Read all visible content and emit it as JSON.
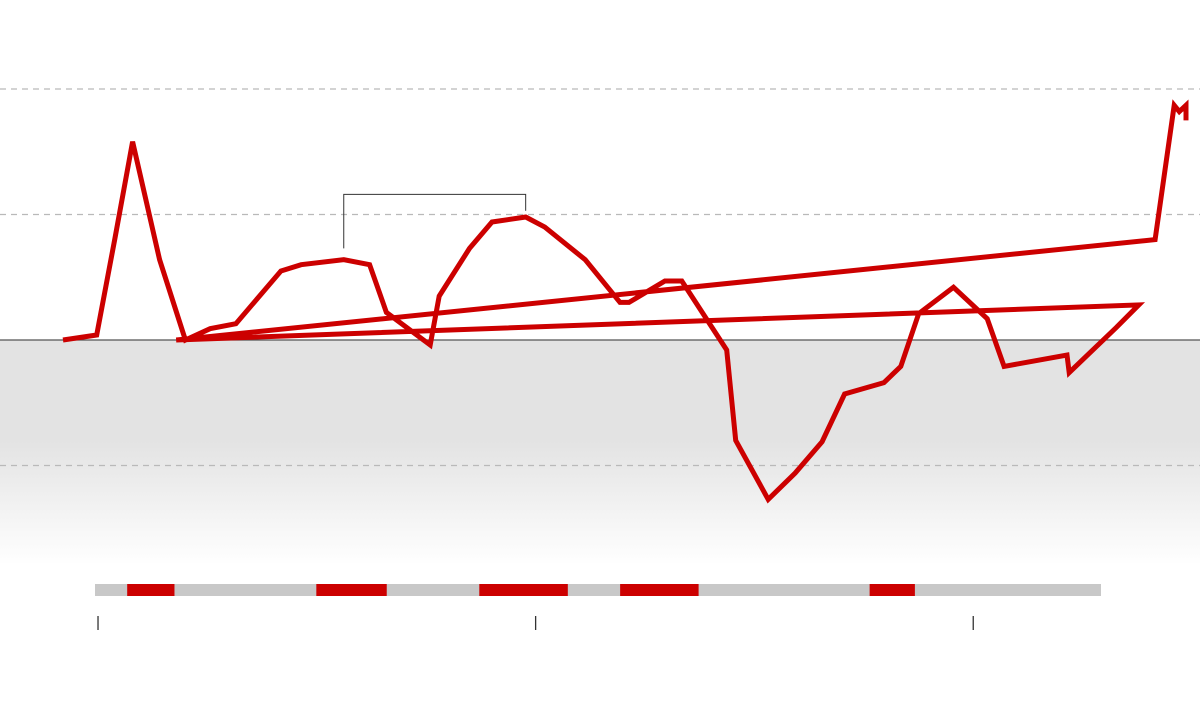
{
  "chart_data": {
    "type": "line",
    "title": "",
    "xlabel": "",
    "ylabel": "",
    "xlim": [
      0,
      1
    ],
    "ylim": [
      -1.7,
      2.0
    ],
    "grid": true,
    "baseline": 0,
    "colors": {
      "series": "#cc0000",
      "negative_band": "#e3e3e3",
      "timeline_track": "#c8c8c8",
      "timeline_highlight": "#cc0000",
      "grid": "#b9b9b9",
      "zero_line": "#555555"
    },
    "gridlines_y": [
      1.0,
      2.0,
      -1.0
    ],
    "series": [
      {
        "points": [
          [
            0.0,
            0.0
          ],
          [
            0.03,
            0.04
          ],
          [
            0.046,
            0.8
          ],
          [
            0.062,
            1.58
          ],
          [
            0.086,
            0.64
          ],
          [
            0.109,
            0.0
          ],
          [
            0.131,
            0.09
          ],
          [
            0.154,
            0.13
          ],
          [
            0.194,
            0.55
          ],
          [
            0.212,
            0.6
          ],
          [
            0.25,
            0.64
          ],
          [
            0.273,
            0.6
          ],
          [
            0.288,
            0.22
          ],
          [
            0.327,
            -0.04
          ],
          [
            0.335,
            0.35
          ],
          [
            0.362,
            0.73
          ],
          [
            0.382,
            0.94
          ],
          [
            0.412,
            0.98
          ],
          [
            0.429,
            0.9
          ],
          [
            0.465,
            0.64
          ],
          [
            0.496,
            0.3
          ],
          [
            0.504,
            0.3
          ],
          [
            0.536,
            0.47
          ],
          [
            0.551,
            0.47
          ],
          [
            0.591,
            -0.08
          ],
          [
            0.599,
            -0.8
          ],
          [
            0.628,
            -1.27
          ],
          [
            0.652,
            -1.06
          ],
          [
            0.676,
            -0.81
          ],
          [
            0.696,
            -0.43
          ],
          [
            0.731,
            -0.34
          ],
          [
            0.746,
            -0.21
          ],
          [
            0.762,
            0.21
          ],
          [
            0.793,
            0.42
          ],
          [
            0.823,
            0.17
          ],
          [
            0.838,
            -0.21
          ],
          [
            0.894,
            -0.12
          ],
          [
            0.896,
            -0.26
          ],
          [
            0.938,
            0.1
          ],
          [
            0.958,
            0.28
          ],
          [
            0.975,
            0.8
          ],
          [
            0.1008,
            0.0
          ]
        ]
      }
    ],
    "highlight_bracket": {
      "x_start": 0.25,
      "x_end": 0.412,
      "y_top": 1.16,
      "y_left_end": 0.73,
      "y_right_end": 1.03
    },
    "timeline": {
      "start": 0.0,
      "end": 1.0,
      "highlights": [
        {
          "start": 0.032,
          "end": 0.079
        },
        {
          "start": 0.22,
          "end": 0.29
        },
        {
          "start": 0.382,
          "end": 0.47
        },
        {
          "start": 0.522,
          "end": 0.6
        },
        {
          "start": 0.77,
          "end": 0.815
        }
      ],
      "ticks": [
        0.003,
        0.438,
        0.873
      ]
    }
  }
}
